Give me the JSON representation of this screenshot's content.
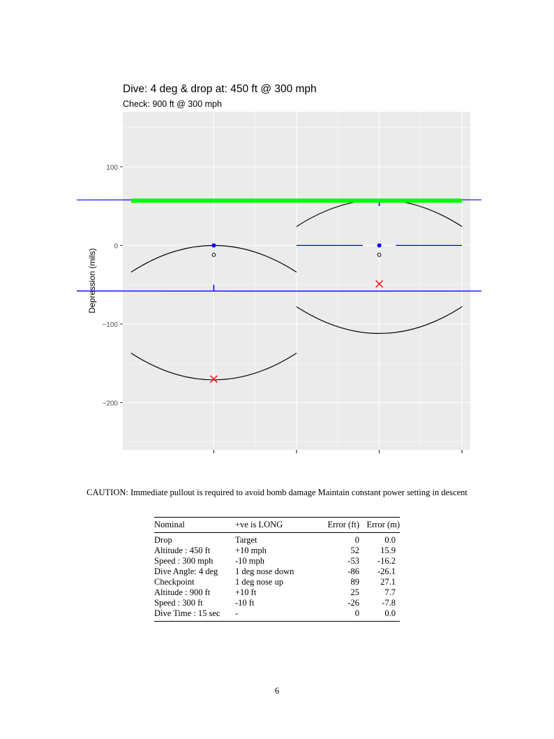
{
  "chart_data": {
    "type": "scatter",
    "title": "Dive: 4 deg & drop at: 450 ft @ 300 mph",
    "subtitle": "Check: 900 ft @ 300 mph",
    "xlabel": "",
    "ylabel": "Depression (mils)",
    "xlim": [
      -1.1,
      3.1
    ],
    "ylim": [
      -260,
      170
    ],
    "x_ticks": [
      0,
      1,
      2,
      3,
      4
    ],
    "x_tick_labels": [
      "",
      "",
      "",
      "",
      ""
    ],
    "y_ticks": [
      100,
      0,
      -100,
      -200
    ],
    "y_tick_labels": [
      "100",
      "0",
      "−100",
      "−200"
    ],
    "grid": true,
    "legend": "none",
    "colors": {
      "panel": "#EBEBEB",
      "grid": "#FFFFFF",
      "reticle": "#0000FF",
      "aim_line": "#00FF00",
      "impact": "#FF0000",
      "arc": "#000000"
    },
    "aim_line": {
      "x": [
        -1,
        3
      ],
      "y": 57
    },
    "panels": [
      {
        "name": "drop",
        "center": [
          0,
          0
        ],
        "ring_radius": 58,
        "ring_type": "lower half arc",
        "tick": {
          "x": 0,
          "y": [
            -58,
            -50
          ]
        },
        "aim_point": [
          0,
          0
        ],
        "check_point": [
          0,
          -12
        ],
        "impact": [
          0,
          -170
        ],
        "arcs": [
          {
            "x": [
              -1,
              0,
              1
            ],
            "y": [
              -34,
              0,
              -34
            ]
          },
          {
            "x": [
              -1,
              0,
              1
            ],
            "y": [
              -137,
              -171,
              -137
            ]
          }
        ]
      },
      {
        "name": "check",
        "center": [
          2,
          0
        ],
        "ring_radius": 58,
        "ring_type": "full circle",
        "tick": {
          "x": 2,
          "y": [
            50,
            58
          ]
        },
        "crosshair": [
          [
            1,
            1.8
          ],
          [
            2.2,
            3
          ]
        ],
        "aim_point": [
          2,
          0
        ],
        "check_point": [
          2,
          -12
        ],
        "impact": [
          2,
          -49
        ],
        "arcs": [
          {
            "x": [
              1,
              2,
              3
            ],
            "y": [
              24,
              58,
              24
            ]
          },
          {
            "x": [
              1,
              2,
              3
            ],
            "y": [
              -78,
              -112,
              -78
            ]
          }
        ]
      }
    ]
  },
  "caution_text": "CAUTION: Immediate pullout is required to avoid bomb damage Maintain constant power setting in descent",
  "error_table": {
    "headers": [
      "Nominal",
      "+ve is LONG",
      "Error (ft)",
      "Error (m)"
    ],
    "rows": [
      [
        "Drop",
        "Target",
        "0",
        "0.0"
      ],
      [
        "Altitude : 450 ft",
        "+10 mph",
        "52",
        "15.9"
      ],
      [
        "Speed : 300 mph",
        "-10 mph",
        "-53",
        "-16.2"
      ],
      [
        "Dive Angle: 4 deg",
        "1 deg nose down",
        "-86",
        "-26.1"
      ],
      [
        "Checkpoint",
        "1 deg nose up",
        "89",
        "27.1"
      ],
      [
        "Altitude : 900 ft",
        "+10 ft",
        "25",
        "7.7"
      ],
      [
        "Speed : 300 ft",
        "-10 ft",
        "-26",
        "-7.8"
      ],
      [
        "Dive Time : 15 sec",
        "-",
        "0",
        "0.0"
      ]
    ]
  },
  "page_number": "6"
}
